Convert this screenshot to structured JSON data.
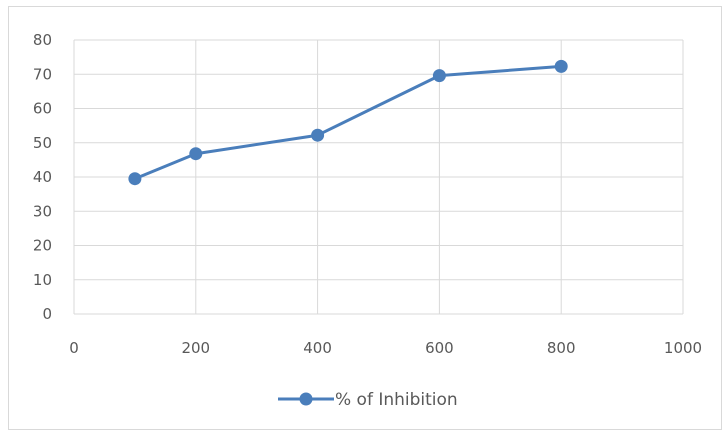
{
  "chart_data": {
    "type": "scatter",
    "x": [
      100,
      200,
      400,
      600,
      800
    ],
    "series": [
      {
        "name": "% of Inhibition",
        "values": [
          39.5,
          46.8,
          52.2,
          69.6,
          72.3
        ]
      }
    ],
    "xlim": [
      0,
      1000
    ],
    "ylim": [
      0,
      80
    ],
    "x_ticks": [
      "0",
      "200",
      "400",
      "600",
      "800",
      "1000"
    ],
    "y_ticks": [
      "0",
      "10",
      "20",
      "30",
      "40",
      "50",
      "60",
      "70",
      "80"
    ],
    "grid": true,
    "legend_position": "bottom",
    "line_color": "#4a7ebb",
    "grid_color": "#d9d9d9"
  }
}
